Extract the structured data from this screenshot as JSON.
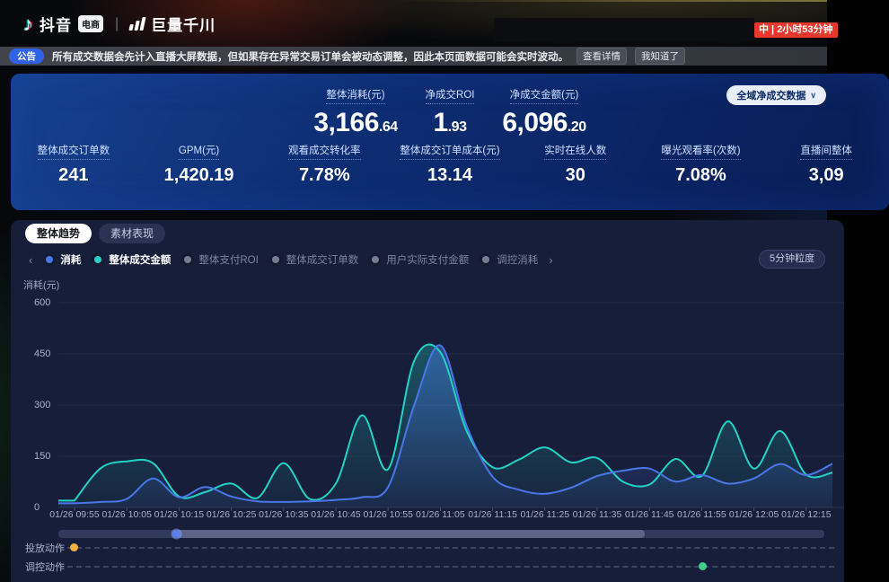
{
  "header": {
    "brand_douyin": "抖音",
    "brand_douyin_badge": "电商",
    "brand_qianchuan": "巨量千川",
    "live_badge": "中 | 2小时53分钟"
  },
  "icons": {
    "prev": "‹",
    "next": "›",
    "chevron_down": "∨",
    "pipe": "|"
  },
  "notice": {
    "badge": "公告",
    "text": "所有成交数据会先计入直播大屏数据，但如果存在异常交易订单会被动态调整，因此本页面数据可能会实时波动。",
    "detail_button": "查看详情",
    "dismiss_button": "我知道了"
  },
  "metrics": {
    "scope_selector": "全域净成交数据",
    "primary": [
      {
        "label": "整体消耗(元)",
        "int": "3,166",
        "dec": ".64"
      },
      {
        "label": "净成交ROI",
        "int": "1",
        "dec": ".93"
      },
      {
        "label": "净成交金额(元)",
        "int": "6,096",
        "dec": ".20"
      }
    ],
    "secondary": [
      {
        "label": "整体成交订单数",
        "value": "241"
      },
      {
        "label": "GPM(元)",
        "value": "1,420.19"
      },
      {
        "label": "观看成交转化率",
        "value": "7.78%"
      },
      {
        "label": "整体成交订单成本(元)",
        "value": "13.14"
      },
      {
        "label": "实时在线人数",
        "value": "30"
      },
      {
        "label": "曝光观看率(次数)",
        "value": "7.08%"
      },
      {
        "label": "直播间整体",
        "value": "3,09"
      }
    ]
  },
  "trend": {
    "tabs": [
      {
        "label": "整体趋势",
        "active": true
      },
      {
        "label": "素材表现",
        "active": false
      }
    ],
    "legend": [
      {
        "label": "消耗",
        "color": "#4a77e8",
        "active": true
      },
      {
        "label": "整体成交金额",
        "color": "#22d3c5",
        "active": true
      },
      {
        "label": "整体支付ROI",
        "color": "#767d90",
        "active": false
      },
      {
        "label": "整体成交订单数",
        "color": "#767d90",
        "active": false
      },
      {
        "label": "用户实际支付金额",
        "color": "#767d90",
        "active": false
      },
      {
        "label": "调控消耗",
        "color": "#767d90",
        "active": false
      }
    ],
    "granularity": "5分钟粒度",
    "action_rows": [
      {
        "label": "投放动作",
        "marker_color": "#f0b342",
        "marker_pos": 0.02
      },
      {
        "label": "调控动作",
        "marker_color": "#3ecf8e",
        "marker_pos": 0.839
      }
    ]
  },
  "chart_data": {
    "type": "area",
    "title": "",
    "xlabel": "",
    "ylabel": "消耗(元)",
    "ylim": [
      0,
      600
    ],
    "yticks": [
      0,
      150,
      300,
      450,
      600
    ],
    "grid": true,
    "legend_position": "top-left",
    "x_labels": [
      "01/26 09:55",
      "01/26 10:05",
      "01/26 10:15",
      "01/26 10:25",
      "01/26 10:35",
      "01/26 10:45",
      "01/26 10:55",
      "01/26 11:05",
      "01/26 11:15",
      "01/26 11:25",
      "01/26 11:35",
      "01/26 11:45",
      "01/26 11:55",
      "01/26 12:05",
      "01/26 12:15"
    ],
    "x": [
      "01/26 09:55",
      "01/26 10:00",
      "01/26 10:05",
      "01/26 10:10",
      "01/26 10:15",
      "01/26 10:20",
      "01/26 10:25",
      "01/26 10:30",
      "01/26 10:35",
      "01/26 10:40",
      "01/26 10:45",
      "01/26 10:50",
      "01/26 10:55",
      "01/26 11:00",
      "01/26 11:05",
      "01/26 11:10",
      "01/26 11:15",
      "01/26 11:20",
      "01/26 11:25",
      "01/26 11:30",
      "01/26 11:35",
      "01/26 11:40",
      "01/26 11:45",
      "01/26 11:50",
      "01/26 11:55",
      "01/26 12:00",
      "01/26 12:05",
      "01/26 12:10",
      "01/26 12:15",
      "01/26 12:20"
    ],
    "series": [
      {
        "name": "整体成交金额",
        "color": "#22d3c5",
        "values": [
          20,
          115,
          135,
          130,
          32,
          45,
          70,
          28,
          130,
          25,
          70,
          270,
          112,
          430,
          455,
          225,
          118,
          140,
          176,
          132,
          145,
          75,
          67,
          142,
          92,
          252,
          114,
          224,
          96,
          102
        ]
      },
      {
        "name": "消耗",
        "color": "#4a77e8",
        "values": [
          12,
          16,
          25,
          85,
          30,
          60,
          32,
          18,
          16,
          18,
          22,
          30,
          60,
          300,
          475,
          240,
          90,
          52,
          40,
          58,
          92,
          108,
          114,
          76,
          95,
          70,
          85,
          127,
          95,
          128
        ]
      }
    ]
  }
}
